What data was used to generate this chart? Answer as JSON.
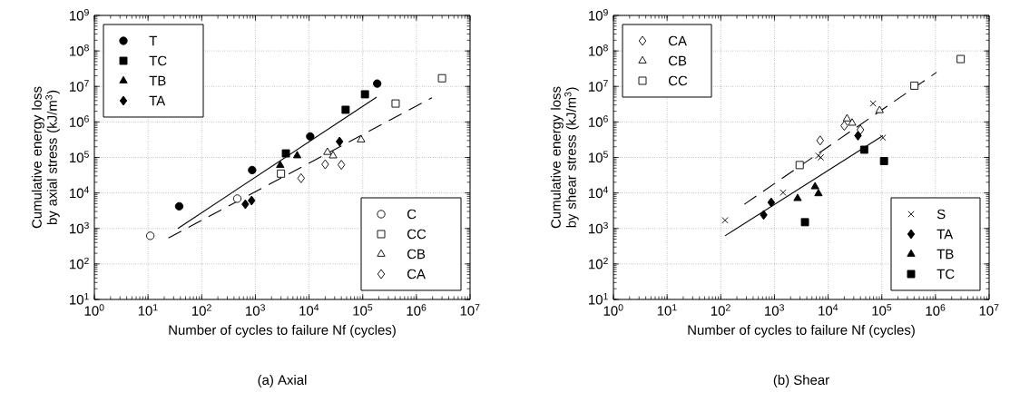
{
  "chart_data": [
    {
      "type": "scatter",
      "title": "(a) Axial",
      "xlabel": "Number of cycles to failure Nf (cycles)",
      "ylabel": "Cumulative energy loss by axial stress (kJ/m$^{3}$)",
      "log": "xy",
      "grid": true,
      "legend": [
        "top left",
        "bottom right"
      ],
      "xlim": [
        1,
        10000000
      ],
      "ylim": [
        10,
        1000000000
      ],
      "xticks": [
        {
          "value": 1,
          "label": "10$^{0}$"
        },
        {
          "value": 10,
          "label": "10$^{1}$"
        },
        {
          "value": 100,
          "label": "10$^{2}$"
        },
        {
          "value": 1000,
          "label": "10$^{3}$"
        },
        {
          "value": 10000,
          "label": "10$^{4}$"
        },
        {
          "value": 100000,
          "label": "10$^{5}$"
        },
        {
          "value": 1000000,
          "label": "10$^{6}$"
        },
        {
          "value": 10000000,
          "label": "10$^{7}$"
        }
      ],
      "yticks": [
        {
          "value": 10,
          "label": "10$^{1}$"
        },
        {
          "value": 100,
          "label": "10$^{2}$"
        },
        {
          "value": 1000,
          "label": "10$^{3}$"
        },
        {
          "value": 10000,
          "label": "10$^{4}$"
        },
        {
          "value": 100000,
          "label": "10$^{5}$"
        },
        {
          "value": 1000000,
          "label": "10$^{6}$"
        },
        {
          "value": 10000000,
          "label": "10$^{7}$"
        },
        {
          "value": 100000000,
          "label": "10$^{8}$"
        },
        {
          "value": 1000000000,
          "label": "10$^{9}$"
        }
      ],
      "series": [
        {
          "name": "T",
          "color": "#000000",
          "marker": "circle",
          "x": [
            38,
            870,
            10500,
            186000
          ],
          "values": [
            4200,
            44000,
            390000,
            12000000
          ]
        },
        {
          "name": "TC",
          "color": "#000000",
          "marker": "square",
          "x": [
            3700,
            48000,
            110000
          ],
          "values": [
            130000,
            2200000,
            6000000
          ]
        },
        {
          "name": "TB",
          "color": "#000000",
          "marker": "triangle",
          "x": [
            2900,
            6000
          ],
          "values": [
            60000,
            112000
          ]
        },
        {
          "name": "TA",
          "color": "#000000",
          "marker": "diamond",
          "x": [
            650,
            850,
            37000
          ],
          "values": [
            4800,
            6100,
            280000
          ]
        },
        {
          "name": "C",
          "color": "#ffffff",
          "marker": "circle",
          "x": [
            11,
            460
          ],
          "values": [
            620,
            6900
          ]
        },
        {
          "name": "CC",
          "color": "#ffffff",
          "marker": "square",
          "x": [
            3000,
            410000,
            3000000
          ],
          "values": [
            35000,
            3300000,
            17000000
          ]
        },
        {
          "name": "CB",
          "color": "#ffffff",
          "marker": "triangle",
          "x": [
            22000,
            28000,
            93000
          ],
          "values": [
            140000,
            112000,
            315000
          ]
        },
        {
          "name": "CA",
          "color": "#ffffff",
          "marker": "diamond",
          "x": [
            7100,
            20000,
            40000
          ],
          "values": [
            26000,
            64000,
            62000
          ]
        },
        {
          "type": "line",
          "color": "#000000",
          "line_style": "solid",
          "x": [
            36,
            182000
          ],
          "values": [
            1000,
            5000000
          ]
        },
        {
          "type": "line",
          "color": "#000000",
          "line_style": "dashed",
          "x": [
            24,
            1950000
          ],
          "values": [
            540,
            4800000
          ]
        }
      ]
    },
    {
      "type": "scatter",
      "title": "(b) Shear",
      "xlabel": "Number of cycles to failure Nf (cycles)",
      "ylabel": "Cumulative energy loss by shear stress (kJ/m$^{3}$)",
      "log": "xy",
      "grid": true,
      "legend": [
        "top left",
        "bottom right"
      ],
      "xlim": [
        1,
        10000000
      ],
      "ylim": [
        10,
        1000000000
      ],
      "xticks": [
        {
          "value": 1,
          "label": "10$^{0}$"
        },
        {
          "value": 10,
          "label": "10$^{1}$"
        },
        {
          "value": 100,
          "label": "10$^{2}$"
        },
        {
          "value": 1000,
          "label": "10$^{3}$"
        },
        {
          "value": 10000,
          "label": "10$^{4}$"
        },
        {
          "value": 100000,
          "label": "10$^{5}$"
        },
        {
          "value": 1000000,
          "label": "10$^{6}$"
        },
        {
          "value": 10000000,
          "label": "10$^{7}$"
        }
      ],
      "yticks": [
        {
          "value": 10,
          "label": "10$^{1}$"
        },
        {
          "value": 100,
          "label": "10$^{2}$"
        },
        {
          "value": 1000,
          "label": "10$^{3}$"
        },
        {
          "value": 10000,
          "label": "10$^{4}$"
        },
        {
          "value": 100000,
          "label": "10$^{5}$"
        },
        {
          "value": 1000000,
          "label": "10$^{6}$"
        },
        {
          "value": 10000000,
          "label": "10$^{7}$"
        },
        {
          "value": 100000000,
          "label": "10$^{8}$"
        },
        {
          "value": 1000000000,
          "label": "10$^{9}$"
        }
      ],
      "series": [
        {
          "name": "CA",
          "color": "#ffffff",
          "marker": "diamond",
          "x": [
            7100,
            20000,
            40000
          ],
          "values": [
            300000,
            780000,
            600000
          ]
        },
        {
          "name": "CB",
          "color": "#ffffff",
          "marker": "triangle",
          "x": [
            22500,
            28000,
            91000
          ],
          "values": [
            1230000,
            930000,
            2100000
          ]
        },
        {
          "name": "CC",
          "color": "#ffffff",
          "marker": "square",
          "x": [
            2950,
            405000,
            2950000
          ],
          "values": [
            61000,
            10500000,
            59000000
          ]
        },
        {
          "name": "S",
          "color": "#000000",
          "marker": "cross",
          "x": [
            120,
            1450,
            6600,
            7300,
            69000,
            105000
          ],
          "values": [
            1700,
            10200,
            112000,
            100000,
            3300000,
            360000
          ]
        },
        {
          "name": "TA",
          "color": "#000000",
          "marker": "diamond",
          "x": [
            630,
            870,
            36000
          ],
          "values": [
            2400,
            5400,
            410000
          ]
        },
        {
          "name": "TB",
          "color": "#000000",
          "marker": "triangle",
          "x": [
            2700,
            5700,
            6600
          ],
          "values": [
            7000,
            15000,
            9600
          ]
        },
        {
          "name": "TC",
          "color": "#000000",
          "marker": "square",
          "x": [
            3700,
            47000,
            110000
          ],
          "values": [
            1500,
            165000,
            79000
          ]
        },
        {
          "type": "line",
          "color": "#000000",
          "line_style": "solid",
          "x": [
            120,
            105000
          ],
          "values": [
            620,
            410000
          ]
        },
        {
          "type": "line",
          "color": "#000000",
          "line_style": "dashed",
          "x": [
            275,
            1050000
          ],
          "values": [
            4800,
            25000000
          ]
        }
      ]
    }
  ]
}
